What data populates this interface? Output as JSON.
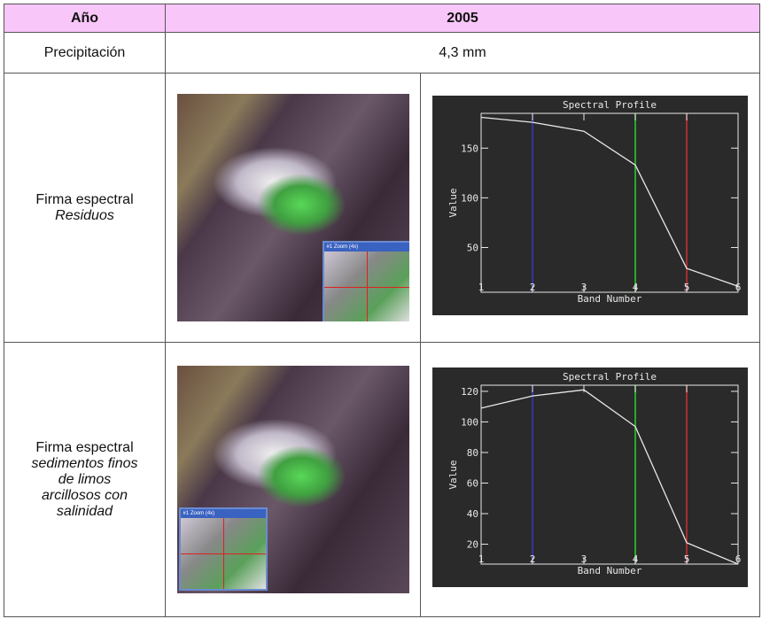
{
  "table": {
    "header": [
      "Año",
      "2005"
    ],
    "rows": [
      [
        "Precipitación",
        "4,3 mm"
      ],
      {
        "label": "Firma espectral",
        "detail": "Residuos"
      },
      {
        "label": "Firma espectral",
        "detail": "sedimentos finos de limos arcillosos con salinidad"
      }
    ]
  },
  "zoom_window": "#1 Zoom (4x)",
  "charts": [
    {
      "type": "line",
      "title": "Spectral Profile",
      "x_label": "Band Number",
      "y_label": "Value",
      "x": [
        1,
        2,
        3,
        4,
        5,
        6
      ],
      "values": [
        181,
        176,
        167,
        133,
        29,
        11
      ],
      "color": "#e8e8e8",
      "xlim": [
        1,
        6
      ],
      "xticks": [
        1,
        2,
        3,
        4,
        5,
        6
      ],
      "ylim": [
        5,
        185
      ],
      "yticks": [
        50,
        100,
        150
      ],
      "markers": [
        {
          "x": 2,
          "color": "#3838c8"
        },
        {
          "x": 4,
          "color": "#30d030"
        },
        {
          "x": 5,
          "color": "#d03030"
        }
      ]
    },
    {
      "type": "line",
      "title": "Spectral Profile",
      "x_label": "Band Number",
      "y_label": "Value",
      "x": [
        1,
        2,
        3,
        4,
        5,
        6
      ],
      "values": [
        109,
        117,
        121,
        97,
        21,
        7
      ],
      "color": "#e8e8e8",
      "xlim": [
        1,
        6
      ],
      "xticks": [
        1,
        2,
        3,
        4,
        5,
        6
      ],
      "ylim": [
        7,
        124
      ],
      "yticks": [
        20,
        40,
        60,
        80,
        100,
        120
      ],
      "markers": [
        {
          "x": 2,
          "color": "#3838c8"
        },
        {
          "x": 4,
          "color": "#30d030"
        },
        {
          "x": 5,
          "color": "#d03030"
        }
      ]
    }
  ]
}
